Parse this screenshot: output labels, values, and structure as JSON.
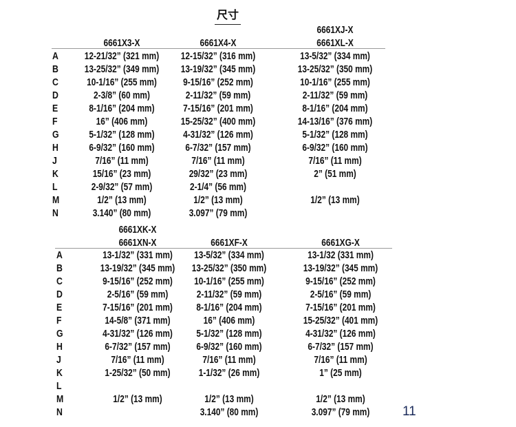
{
  "title": "尺寸",
  "page_number": "11",
  "row_labels": [
    "A",
    "B",
    "C",
    "D",
    "E",
    "F",
    "G",
    "H",
    "J",
    "K",
    "L",
    "M",
    "N"
  ],
  "tables": [
    {
      "columns": [
        {
          "header": [
            "6661X3-X"
          ],
          "values": [
            "12-21/32” (321 mm)",
            "13-25/32” (349 mm)",
            "10-1/16” (255 mm)",
            "2-3/8” (60 mm)",
            "8-1/16” (204 mm)",
            "16” (406 mm)",
            "5-1/32” (128 mm)",
            "6-9/32” (160 mm)",
            "7/16” (11 mm)",
            "15/16” (23 mm)",
            "2-9/32” (57 mm)",
            "1/2” (13 mm)",
            "3.140” (80 mm)"
          ]
        },
        {
          "header": [
            "6661X4-X"
          ],
          "values": [
            "12-15/32” (316 mm)",
            "13-19/32” (345 mm)",
            "9-15/16” (252 mm)",
            "2-11/32” (59 mm)",
            "7-15/16” (201 mm)",
            "15-25/32” (400 mm)",
            "4-31/32” (126 mm)",
            "6-7/32” (157 mm)",
            "7/16” (11 mm)",
            "29/32” (23 mm)",
            "2-1/4” (56 mm)",
            "1/2” (13 mm)",
            "3.097” (79 mm)"
          ]
        },
        {
          "header": [
            "6661XJ-X",
            "6661XL-X"
          ],
          "values": [
            "13-5/32” (334 mm)",
            "13-25/32” (350 mm)",
            "10-1/16” (255 mm)",
            "2-11/32” (59 mm)",
            "8-1/16” (204 mm)",
            "14-13/16” (376 mm)",
            "5-1/32” (128 mm)",
            "6-9/32” (160 mm)",
            "7/16” (11 mm)",
            "2” (51 mm)",
            "",
            "1/2” (13 mm)",
            ""
          ]
        }
      ]
    },
    {
      "columns": [
        {
          "header": [
            "6661XK-X",
            "6661XN-X"
          ],
          "values": [
            "13-1/32” (331 mm)",
            "13-19/32” (345 mm)",
            "9-15/16” (252 mm)",
            "2-5/16” (59 mm)",
            "7-15/16” (201 mm)",
            "14-5/8” (371 mm)",
            "4-31/32” (126 mm)",
            "6-7/32” (157 mm)",
            "7/16” (11 mm)",
            "1-25/32” (50 mm)",
            "",
            "1/2” (13 mm)",
            ""
          ]
        },
        {
          "header": [
            "6661XF-X"
          ],
          "values": [
            "13-5/32” (334 mm)",
            "13-25/32” (350 mm)",
            "10-1/16” (255 mm)",
            "2-11/32” (59 mm)",
            "8-1/16” (204 mm)",
            "16” (406 mm)",
            "5-1/32” (128 mm)",
            "6-9/32” (160 mm)",
            "7/16” (11 mm)",
            "1-1/32” (26 mm)",
            "",
            "1/2” (13 mm)",
            "3.140” (80 mm)"
          ]
        },
        {
          "header": [
            "6661XG-X"
          ],
          "values": [
            "13-1/32 (331 mm)",
            "13-19/32” (345 mm)",
            "9-15/16” (252 mm)",
            "2-5/16” (59 mm)",
            "7-15/16” (201 mm)",
            "15-25/32” (401 mm)",
            "4-31/32” (126 mm)",
            "6-7/32” (157 mm)",
            "7/16” (11 mm)",
            "1” (25 mm)",
            "",
            "1/2” (13 mm)",
            "3.097” (79 mm)"
          ]
        }
      ]
    }
  ]
}
